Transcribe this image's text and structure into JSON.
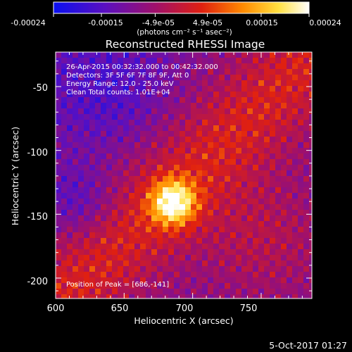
{
  "colorbar": {
    "tick_labels": [
      "-0.00024",
      "-0.00015",
      "-4.9e-05",
      "4.9e-05",
      "0.00015",
      "0.00024"
    ],
    "tick_values": [
      -0.00024,
      -0.00015,
      -4.9e-05,
      4.9e-05,
      0.00015,
      0.00024
    ],
    "range": [
      -0.00024,
      0.00024
    ],
    "units_label": "(photons cm⁻² s⁻¹ asec⁻²)",
    "colormap": "rhessi-blue-purple-red-yellow-white",
    "colors": [
      "#0a10f0",
      "#5a10c0",
      "#a0106a",
      "#e02010",
      "#ff8a00",
      "#ffe040",
      "#ffffff"
    ]
  },
  "plot": {
    "title": "Reconstructed RHESSI Image",
    "xlabel": "Heliocentric X (arcsec)",
    "ylabel": "Heliocentric Y (arcsec)",
    "x_ticks": [
      "600",
      "650",
      "700",
      "750"
    ],
    "x_tick_values": [
      600,
      650,
      700,
      750
    ],
    "y_ticks": [
      "-50",
      "-100",
      "-150",
      "-200"
    ],
    "y_tick_values": [
      -50,
      -100,
      -150,
      -200
    ],
    "xlim": [
      600,
      787
    ],
    "ylim": [
      -216,
      -23
    ],
    "info_lines": [
      "26-Apr-2015 00:32:32.000 to 00:42:32.000",
      "Detectors: 3F 5F 6F 7F 8F 9F, Att 0",
      "Energy Range: 12.0 - 25.0 keV",
      "Clean    Total counts: 1.01E+04"
    ],
    "peak_label": "Position of Peak = [686,-141]",
    "peak": [
      686,
      -141
    ]
  },
  "footer": {
    "timestamp": "5-Oct-2017 01:27"
  }
}
